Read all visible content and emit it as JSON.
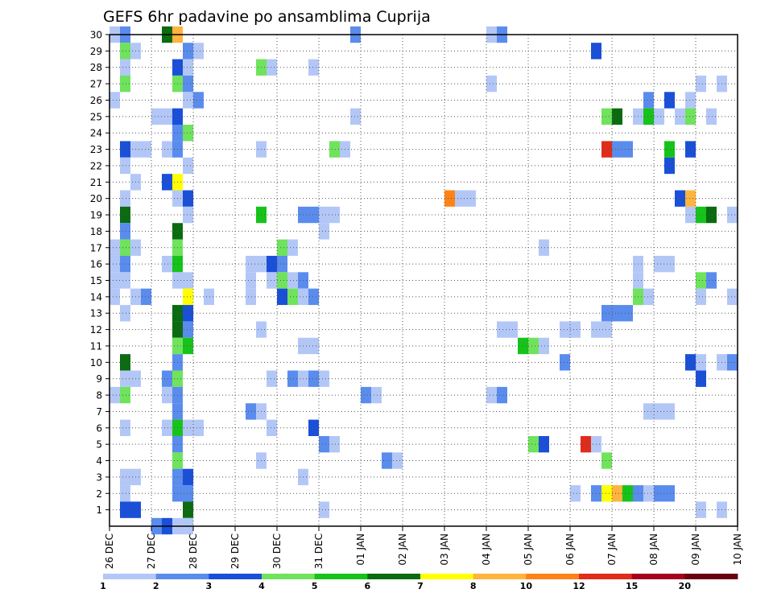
{
  "chart_data": {
    "type": "heatmap",
    "title": "GEFS 6hr padavine po ansamblima Cuprija",
    "xlabel": "",
    "ylabel": "",
    "x_ticks": [
      "26 DEC",
      "27 DEC",
      "28 DEC",
      "29 DEC",
      "30 DEC",
      "31 DEC",
      "01 JAN",
      "02 JAN",
      "03 JAN",
      "04 JAN",
      "05 JAN",
      "06 JAN",
      "07 JAN",
      "08 JAN",
      "09 JAN",
      "10 JAN"
    ],
    "y_ticks": [
      1,
      2,
      3,
      4,
      5,
      6,
      7,
      8,
      9,
      10,
      11,
      12,
      13,
      14,
      15,
      16,
      17,
      18,
      19,
      20,
      21,
      22,
      23,
      24,
      25,
      26,
      27,
      28,
      29,
      30
    ],
    "x_range": [
      0,
      15
    ],
    "y_range": [
      0,
      30
    ],
    "grid": true,
    "steps_per_day": 4,
    "legend_levels": [
      "1",
      "2",
      "3",
      "4",
      "5",
      "6",
      "7",
      "8",
      "10",
      "12",
      "15",
      "20"
    ],
    "legend_colors": [
      "#b3c7f7",
      "#5a8ced",
      "#1a4fd8",
      "#6fe35c",
      "#16c31a",
      "#0a6b10",
      "#ffff00",
      "#ffb43c",
      "#ff8216",
      "#e02c1a",
      "#a5001e",
      "#6b0010"
    ],
    "cells": [
      [
        0,
        30,
        1
      ],
      [
        1,
        30,
        2
      ],
      [
        5,
        30,
        6
      ],
      [
        6,
        30,
        8
      ],
      [
        23,
        30,
        2
      ],
      [
        36,
        30,
        1
      ],
      [
        37,
        30,
        2
      ],
      [
        1,
        29,
        4
      ],
      [
        2,
        29,
        1
      ],
      [
        7,
        29,
        2
      ],
      [
        8,
        29,
        1
      ],
      [
        46,
        29,
        3
      ],
      [
        1,
        28,
        1
      ],
      [
        6,
        28,
        3
      ],
      [
        7,
        28,
        1
      ],
      [
        14,
        28,
        4
      ],
      [
        15,
        28,
        1
      ],
      [
        19,
        28,
        1
      ],
      [
        1,
        27,
        4
      ],
      [
        6,
        27,
        4
      ],
      [
        7,
        27,
        2
      ],
      [
        36,
        27,
        1
      ],
      [
        56,
        27,
        1
      ],
      [
        58,
        27,
        1
      ],
      [
        0,
        26,
        1
      ],
      [
        7,
        26,
        1
      ],
      [
        8,
        26,
        2
      ],
      [
        51,
        26,
        2
      ],
      [
        53,
        26,
        3
      ],
      [
        55,
        26,
        1
      ],
      [
        4,
        25,
        1
      ],
      [
        5,
        25,
        1
      ],
      [
        6,
        25,
        3
      ],
      [
        23,
        25,
        1
      ],
      [
        47,
        25,
        4
      ],
      [
        48,
        25,
        6
      ],
      [
        50,
        25,
        1
      ],
      [
        51,
        25,
        5
      ],
      [
        52,
        25,
        1
      ],
      [
        54,
        25,
        1
      ],
      [
        55,
        25,
        4
      ],
      [
        57,
        25,
        1
      ],
      [
        6,
        24,
        2
      ],
      [
        7,
        24,
        4
      ],
      [
        1,
        23,
        3
      ],
      [
        2,
        23,
        1
      ],
      [
        3,
        23,
        1
      ],
      [
        5,
        23,
        1
      ],
      [
        6,
        23,
        2
      ],
      [
        14,
        23,
        1
      ],
      [
        21,
        23,
        4
      ],
      [
        22,
        23,
        1
      ],
      [
        47,
        23,
        10
      ],
      [
        48,
        23,
        2
      ],
      [
        49,
        23,
        2
      ],
      [
        53,
        23,
        5
      ],
      [
        55,
        23,
        3
      ],
      [
        1,
        22,
        1
      ],
      [
        7,
        22,
        1
      ],
      [
        53,
        22,
        3
      ],
      [
        2,
        21,
        1
      ],
      [
        5,
        21,
        3
      ],
      [
        6,
        21,
        7
      ],
      [
        1,
        20,
        1
      ],
      [
        6,
        20,
        1
      ],
      [
        7,
        20,
        3
      ],
      [
        32,
        20,
        9
      ],
      [
        33,
        20,
        1
      ],
      [
        34,
        20,
        1
      ],
      [
        54,
        20,
        3
      ],
      [
        55,
        20,
        8
      ],
      [
        1,
        19,
        6
      ],
      [
        7,
        19,
        1
      ],
      [
        14,
        19,
        5
      ],
      [
        18,
        19,
        2
      ],
      [
        19,
        19,
        2
      ],
      [
        20,
        19,
        1
      ],
      [
        21,
        19,
        1
      ],
      [
        55,
        19,
        1
      ],
      [
        56,
        19,
        5
      ],
      [
        57,
        19,
        6
      ],
      [
        59,
        19,
        1
      ],
      [
        1,
        18,
        2
      ],
      [
        6,
        18,
        6
      ],
      [
        20,
        18,
        1
      ],
      [
        0,
        17,
        1
      ],
      [
        1,
        17,
        4
      ],
      [
        2,
        17,
        1
      ],
      [
        6,
        17,
        4
      ],
      [
        16,
        17,
        4
      ],
      [
        17,
        17,
        1
      ],
      [
        41,
        17,
        1
      ],
      [
        0,
        16,
        1
      ],
      [
        1,
        16,
        2
      ],
      [
        5,
        16,
        1
      ],
      [
        6,
        16,
        5
      ],
      [
        13,
        16,
        1
      ],
      [
        14,
        16,
        1
      ],
      [
        15,
        16,
        3
      ],
      [
        16,
        16,
        2
      ],
      [
        50,
        16,
        1
      ],
      [
        52,
        16,
        1
      ],
      [
        53,
        16,
        1
      ],
      [
        0,
        15,
        1
      ],
      [
        1,
        15,
        1
      ],
      [
        6,
        15,
        1
      ],
      [
        7,
        15,
        1
      ],
      [
        13,
        15,
        1
      ],
      [
        15,
        15,
        1
      ],
      [
        16,
        15,
        4
      ],
      [
        17,
        15,
        1
      ],
      [
        18,
        15,
        2
      ],
      [
        50,
        15,
        1
      ],
      [
        56,
        15,
        4
      ],
      [
        57,
        15,
        2
      ],
      [
        0,
        14,
        1
      ],
      [
        2,
        14,
        1
      ],
      [
        3,
        14,
        2
      ],
      [
        7,
        14,
        7
      ],
      [
        9,
        14,
        1
      ],
      [
        13,
        14,
        1
      ],
      [
        16,
        14,
        3
      ],
      [
        17,
        14,
        4
      ],
      [
        18,
        14,
        1
      ],
      [
        19,
        14,
        2
      ],
      [
        50,
        14,
        4
      ],
      [
        51,
        14,
        1
      ],
      [
        56,
        14,
        1
      ],
      [
        59,
        14,
        1
      ],
      [
        1,
        13,
        1
      ],
      [
        6,
        13,
        6
      ],
      [
        7,
        13,
        3
      ],
      [
        47,
        13,
        2
      ],
      [
        48,
        13,
        2
      ],
      [
        49,
        13,
        2
      ],
      [
        6,
        12,
        6
      ],
      [
        7,
        12,
        2
      ],
      [
        14,
        12,
        1
      ],
      [
        37,
        12,
        1
      ],
      [
        38,
        12,
        1
      ],
      [
        43,
        12,
        1
      ],
      [
        44,
        12,
        1
      ],
      [
        46,
        12,
        1
      ],
      [
        47,
        12,
        1
      ],
      [
        6,
        11,
        4
      ],
      [
        7,
        11,
        5
      ],
      [
        18,
        11,
        1
      ],
      [
        19,
        11,
        1
      ],
      [
        39,
        11,
        5
      ],
      [
        40,
        11,
        4
      ],
      [
        41,
        11,
        1
      ],
      [
        1,
        10,
        6
      ],
      [
        6,
        10,
        2
      ],
      [
        43,
        10,
        2
      ],
      [
        55,
        10,
        3
      ],
      [
        56,
        10,
        1
      ],
      [
        58,
        10,
        1
      ],
      [
        59,
        10,
        2
      ],
      [
        1,
        9,
        1
      ],
      [
        2,
        9,
        1
      ],
      [
        5,
        9,
        2
      ],
      [
        6,
        9,
        4
      ],
      [
        15,
        9,
        1
      ],
      [
        17,
        9,
        2
      ],
      [
        18,
        9,
        1
      ],
      [
        19,
        9,
        2
      ],
      [
        20,
        9,
        1
      ],
      [
        56,
        9,
        3
      ],
      [
        0,
        8,
        1
      ],
      [
        1,
        8,
        4
      ],
      [
        5,
        8,
        1
      ],
      [
        6,
        8,
        2
      ],
      [
        24,
        8,
        2
      ],
      [
        25,
        8,
        1
      ],
      [
        36,
        8,
        1
      ],
      [
        37,
        8,
        2
      ],
      [
        6,
        7,
        2
      ],
      [
        13,
        7,
        2
      ],
      [
        14,
        7,
        1
      ],
      [
        51,
        7,
        1
      ],
      [
        52,
        7,
        1
      ],
      [
        53,
        7,
        1
      ],
      [
        1,
        6,
        1
      ],
      [
        5,
        6,
        1
      ],
      [
        6,
        6,
        5
      ],
      [
        7,
        6,
        1
      ],
      [
        8,
        6,
        1
      ],
      [
        15,
        6,
        1
      ],
      [
        19,
        6,
        3
      ],
      [
        6,
        5,
        2
      ],
      [
        20,
        5,
        2
      ],
      [
        21,
        5,
        1
      ],
      [
        40,
        5,
        4
      ],
      [
        41,
        5,
        3
      ],
      [
        45,
        5,
        10
      ],
      [
        46,
        5,
        1
      ],
      [
        6,
        4,
        4
      ],
      [
        14,
        4,
        1
      ],
      [
        26,
        4,
        2
      ],
      [
        27,
        4,
        1
      ],
      [
        47,
        4,
        4
      ],
      [
        1,
        3,
        1
      ],
      [
        2,
        3,
        1
      ],
      [
        6,
        3,
        2
      ],
      [
        7,
        3,
        3
      ],
      [
        18,
        3,
        1
      ],
      [
        1,
        2,
        1
      ],
      [
        6,
        2,
        2
      ],
      [
        7,
        2,
        2
      ],
      [
        44,
        2,
        1
      ],
      [
        46,
        2,
        2
      ],
      [
        47,
        2,
        7
      ],
      [
        48,
        2,
        8
      ],
      [
        49,
        2,
        5
      ],
      [
        50,
        2,
        2
      ],
      [
        51,
        2,
        1
      ],
      [
        52,
        2,
        2
      ],
      [
        53,
        2,
        2
      ],
      [
        1,
        1,
        3
      ],
      [
        2,
        1,
        3
      ],
      [
        7,
        1,
        6
      ],
      [
        20,
        1,
        1
      ],
      [
        56,
        1,
        1
      ],
      [
        58,
        1,
        1
      ],
      [
        4,
        0,
        2
      ],
      [
        5,
        0,
        3
      ],
      [
        6,
        0,
        1
      ],
      [
        7,
        0,
        1
      ]
    ]
  }
}
